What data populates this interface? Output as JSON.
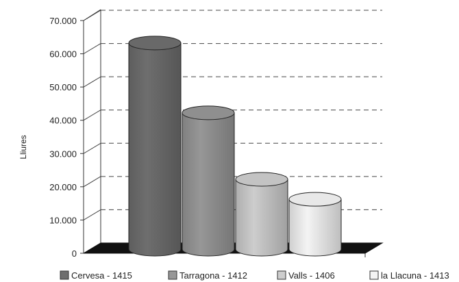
{
  "chart_data": {
    "type": "bar",
    "style": "3d-cylinder",
    "categories": [
      "Cervesa - 1415",
      "Tarragona - 1412",
      "Valls - 1406",
      "la Llacuna - 1413"
    ],
    "values": [
      62000,
      41000,
      21000,
      15000
    ],
    "ylabel": "Lliures",
    "ylim": [
      0,
      70000
    ],
    "yticks": [
      "0",
      "10.000",
      "20.000",
      "30.000",
      "40.000",
      "50.000",
      "60.000",
      "70.000"
    ],
    "grid": true,
    "legend": "bottom",
    "colors": [
      "#6e6e6e",
      "#979797",
      "#cdcdcd",
      "#f4f4f4"
    ]
  }
}
